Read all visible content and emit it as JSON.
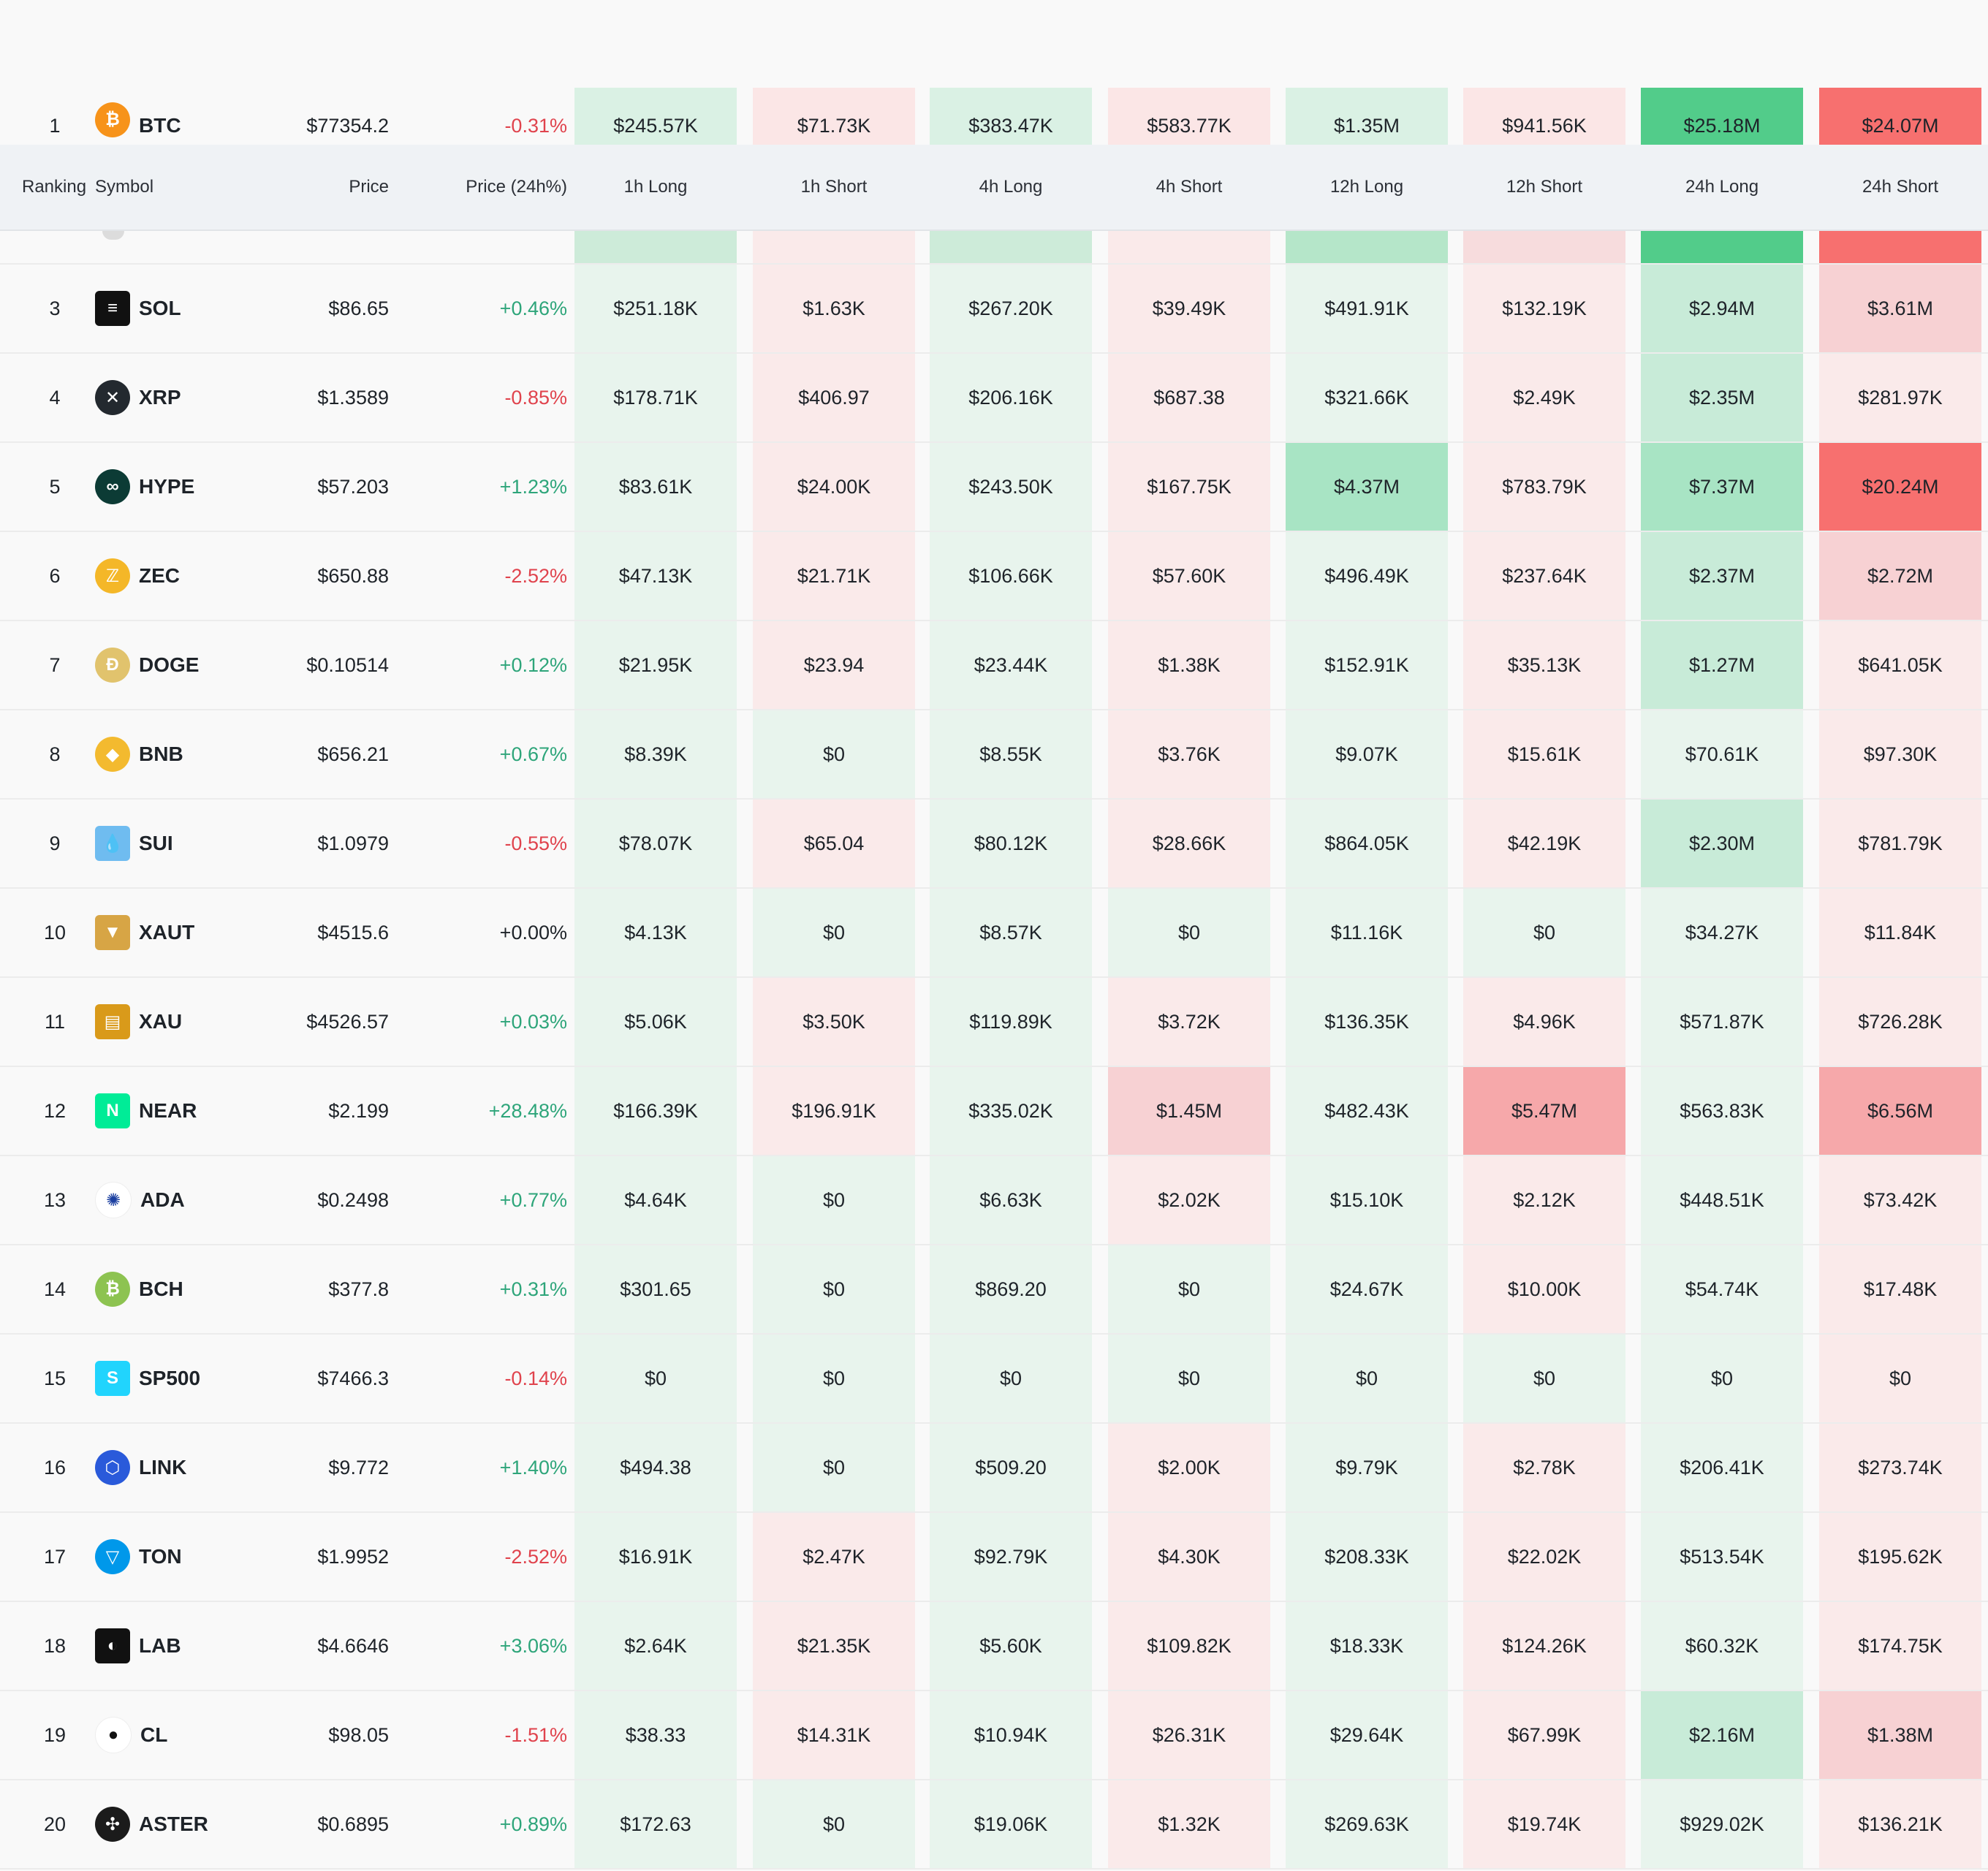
{
  "header": {
    "ranking": "Ranking",
    "symbol": "Symbol",
    "price": "Price",
    "price_change": "Price (24h%)",
    "cols": [
      "1h Long",
      "1h Short",
      "4h Long",
      "4h Short",
      "12h Long",
      "12h Short",
      "24h Long",
      "24h Short"
    ]
  },
  "colors": {
    "long_light": "#e8f4ed",
    "long_mid": "#c8ebd8",
    "long_strong": "#a8e4c4",
    "long_max": "#52cc8a",
    "short_light": "#faeaea",
    "short_mid": "#f7d1d3",
    "short_strong": "#f6a8aa",
    "short_max": "#f7706f",
    "positive_text": "#2ea57a",
    "negative_text": "#e0434d"
  },
  "rows": [
    {
      "rank": "1",
      "symbol": "BTC",
      "icon": "btc-icon",
      "price": "$77354.2",
      "change": "-0.31%",
      "vals": [
        "$245.57K",
        "$71.73K",
        "$383.47K",
        "$583.77K",
        "$1.35M",
        "$941.56K",
        "$25.18M",
        "$24.07M"
      ]
    },
    {
      "rank": "3",
      "symbol": "SOL",
      "icon": "sol-icon",
      "price": "$86.65",
      "change": "+0.46%",
      "vals": [
        "$251.18K",
        "$1.63K",
        "$267.20K",
        "$39.49K",
        "$491.91K",
        "$132.19K",
        "$2.94M",
        "$3.61M"
      ]
    },
    {
      "rank": "4",
      "symbol": "XRP",
      "icon": "xrp-icon",
      "price": "$1.3589",
      "change": "-0.85%",
      "vals": [
        "$178.71K",
        "$406.97",
        "$206.16K",
        "$687.38",
        "$321.66K",
        "$2.49K",
        "$2.35M",
        "$281.97K"
      ]
    },
    {
      "rank": "5",
      "symbol": "HYPE",
      "icon": "hype-icon",
      "price": "$57.203",
      "change": "+1.23%",
      "vals": [
        "$83.61K",
        "$24.00K",
        "$243.50K",
        "$167.75K",
        "$4.37M",
        "$783.79K",
        "$7.37M",
        "$20.24M"
      ]
    },
    {
      "rank": "6",
      "symbol": "ZEC",
      "icon": "zec-icon",
      "price": "$650.88",
      "change": "-2.52%",
      "vals": [
        "$47.13K",
        "$21.71K",
        "$106.66K",
        "$57.60K",
        "$496.49K",
        "$237.64K",
        "$2.37M",
        "$2.72M"
      ]
    },
    {
      "rank": "7",
      "symbol": "DOGE",
      "icon": "doge-icon",
      "price": "$0.10514",
      "change": "+0.12%",
      "vals": [
        "$21.95K",
        "$23.94",
        "$23.44K",
        "$1.38K",
        "$152.91K",
        "$35.13K",
        "$1.27M",
        "$641.05K"
      ]
    },
    {
      "rank": "8",
      "symbol": "BNB",
      "icon": "bnb-icon",
      "price": "$656.21",
      "change": "+0.67%",
      "vals": [
        "$8.39K",
        "$0",
        "$8.55K",
        "$3.76K",
        "$9.07K",
        "$15.61K",
        "$70.61K",
        "$97.30K"
      ]
    },
    {
      "rank": "9",
      "symbol": "SUI",
      "icon": "sui-icon",
      "price": "$1.0979",
      "change": "-0.55%",
      "vals": [
        "$78.07K",
        "$65.04",
        "$80.12K",
        "$28.66K",
        "$864.05K",
        "$42.19K",
        "$2.30M",
        "$781.79K"
      ]
    },
    {
      "rank": "10",
      "symbol": "XAUT",
      "icon": "xaut-icon",
      "price": "$4515.6",
      "change": "+0.00%",
      "vals": [
        "$4.13K",
        "$0",
        "$8.57K",
        "$0",
        "$11.16K",
        "$0",
        "$34.27K",
        "$11.84K"
      ]
    },
    {
      "rank": "11",
      "symbol": "XAU",
      "icon": "xau-icon",
      "price": "$4526.57",
      "change": "+0.03%",
      "vals": [
        "$5.06K",
        "$3.50K",
        "$119.89K",
        "$3.72K",
        "$136.35K",
        "$4.96K",
        "$571.87K",
        "$726.28K"
      ]
    },
    {
      "rank": "12",
      "symbol": "NEAR",
      "icon": "near-icon",
      "price": "$2.199",
      "change": "+28.48%",
      "vals": [
        "$166.39K",
        "$196.91K",
        "$335.02K",
        "$1.45M",
        "$482.43K",
        "$5.47M",
        "$563.83K",
        "$6.56M"
      ]
    },
    {
      "rank": "13",
      "symbol": "ADA",
      "icon": "ada-icon",
      "price": "$0.2498",
      "change": "+0.77%",
      "vals": [
        "$4.64K",
        "$0",
        "$6.63K",
        "$2.02K",
        "$15.10K",
        "$2.12K",
        "$448.51K",
        "$73.42K"
      ]
    },
    {
      "rank": "14",
      "symbol": "BCH",
      "icon": "bch-icon",
      "price": "$377.8",
      "change": "+0.31%",
      "vals": [
        "$301.65",
        "$0",
        "$869.20",
        "$0",
        "$24.67K",
        "$10.00K",
        "$54.74K",
        "$17.48K"
      ]
    },
    {
      "rank": "15",
      "symbol": "SP500",
      "icon": "sp500-icon",
      "price": "$7466.3",
      "change": "-0.14%",
      "vals": [
        "$0",
        "$0",
        "$0",
        "$0",
        "$0",
        "$0",
        "$0",
        "$0"
      ]
    },
    {
      "rank": "16",
      "symbol": "LINK",
      "icon": "link-icon",
      "price": "$9.772",
      "change": "+1.40%",
      "vals": [
        "$494.38",
        "$0",
        "$509.20",
        "$2.00K",
        "$9.79K",
        "$2.78K",
        "$206.41K",
        "$273.74K"
      ]
    },
    {
      "rank": "17",
      "symbol": "TON",
      "icon": "ton-icon",
      "price": "$1.9952",
      "change": "-2.52%",
      "vals": [
        "$16.91K",
        "$2.47K",
        "$92.79K",
        "$4.30K",
        "$208.33K",
        "$22.02K",
        "$513.54K",
        "$195.62K"
      ]
    },
    {
      "rank": "18",
      "symbol": "LAB",
      "icon": "lab-icon",
      "price": "$4.6646",
      "change": "+3.06%",
      "vals": [
        "$2.64K",
        "$21.35K",
        "$5.60K",
        "$109.82K",
        "$18.33K",
        "$124.26K",
        "$60.32K",
        "$174.75K"
      ]
    },
    {
      "rank": "19",
      "symbol": "CL",
      "icon": "cl-icon",
      "price": "$98.05",
      "change": "-1.51%",
      "vals": [
        "$38.33",
        "$14.31K",
        "$10.94K",
        "$26.31K",
        "$29.64K",
        "$67.99K",
        "$2.16M",
        "$1.38M"
      ]
    },
    {
      "rank": "20",
      "symbol": "ASTER",
      "icon": "aster-icon",
      "price": "$0.6895",
      "change": "+0.89%",
      "vals": [
        "$172.63",
        "$0",
        "$19.06K",
        "$1.32K",
        "$269.63K",
        "$19.74K",
        "$929.02K",
        "$136.21K"
      ]
    }
  ]
}
